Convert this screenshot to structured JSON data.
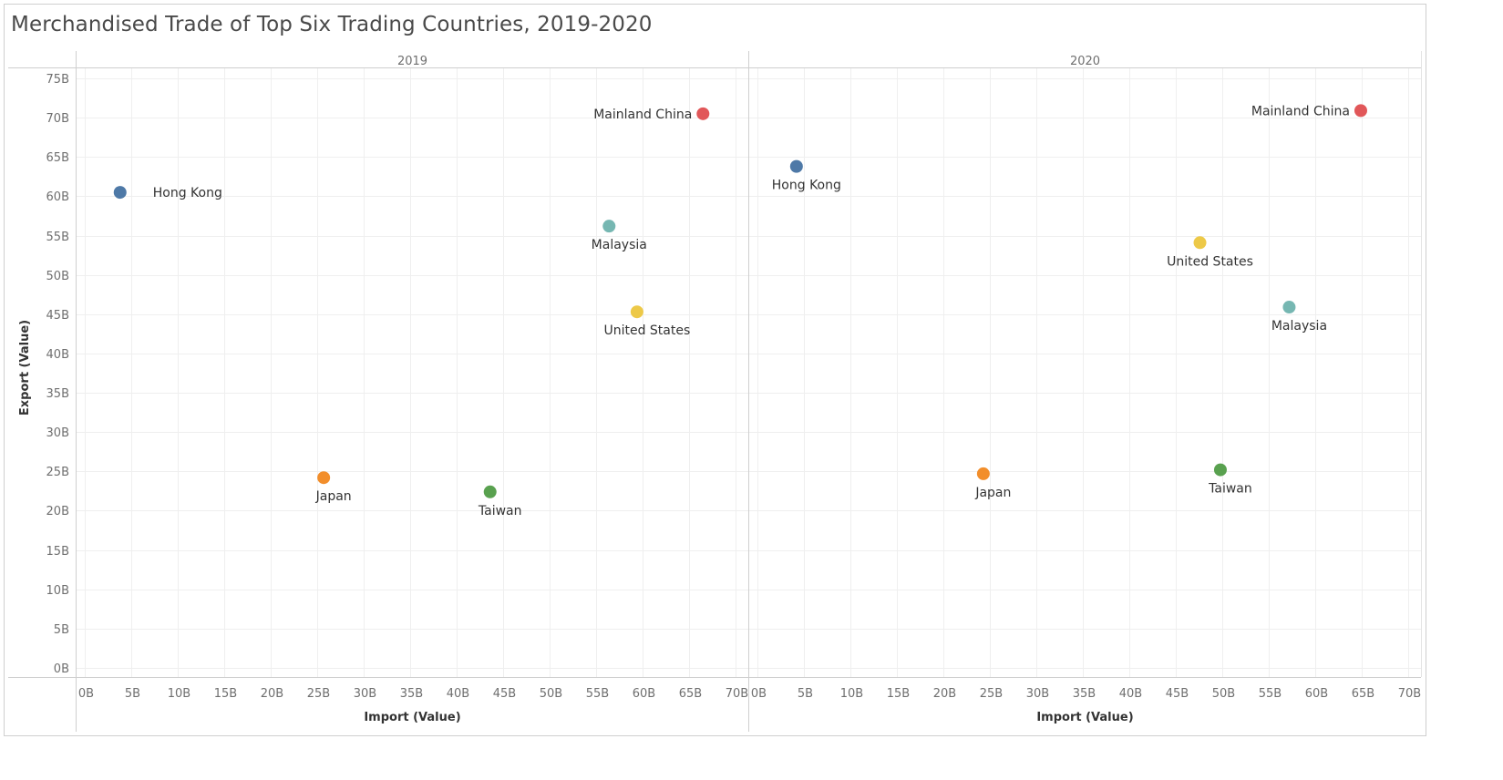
{
  "chart_data": {
    "type": "scatter",
    "title": "Merchandised Trade of Top Six Trading Countries, 2019-2020",
    "xlabel": "Import (Value)",
    "ylabel": "Export (Value)",
    "xlim": [
      0,
      70
    ],
    "ylim": [
      0,
      75
    ],
    "x_ticks": [
      "0B",
      "5B",
      "10B",
      "15B",
      "20B",
      "25B",
      "30B",
      "35B",
      "40B",
      "45B",
      "50B",
      "55B",
      "60B",
      "65B",
      "70B"
    ],
    "y_ticks": [
      "0B",
      "5B",
      "10B",
      "15B",
      "20B",
      "25B",
      "30B",
      "35B",
      "40B",
      "45B",
      "50B",
      "55B",
      "60B",
      "65B",
      "70B",
      "75B"
    ],
    "unit": "B",
    "grid": true,
    "colors": {
      "Hong Kong": "#4e79a7",
      "Mainland China": "#e15759",
      "Malaysia": "#76b7b2",
      "United States": "#edc948",
      "Japan": "#f28e2b",
      "Taiwan": "#59a14f"
    },
    "panels": [
      {
        "name": "2019",
        "points": [
          {
            "label": "Hong Kong",
            "x": 3.8,
            "y": 60.5,
            "label_pos": "right"
          },
          {
            "label": "Mainland China",
            "x": 66.5,
            "y": 70.5,
            "label_pos": "left"
          },
          {
            "label": "Malaysia",
            "x": 56.4,
            "y": 56.2,
            "label_pos": "below"
          },
          {
            "label": "United States",
            "x": 59.4,
            "y": 45.3,
            "label_pos": "below"
          },
          {
            "label": "Japan",
            "x": 25.7,
            "y": 24.2,
            "label_pos": "below"
          },
          {
            "label": "Taiwan",
            "x": 43.6,
            "y": 22.4,
            "label_pos": "below"
          }
        ]
      },
      {
        "name": "2020",
        "points": [
          {
            "label": "Hong Kong",
            "x": 4.2,
            "y": 63.8,
            "label_pos": "below"
          },
          {
            "label": "Mainland China",
            "x": 64.9,
            "y": 70.9,
            "label_pos": "left"
          },
          {
            "label": "Malaysia",
            "x": 57.2,
            "y": 45.9,
            "label_pos": "below"
          },
          {
            "label": "United States",
            "x": 47.6,
            "y": 54.1,
            "label_pos": "below"
          },
          {
            "label": "Japan",
            "x": 24.3,
            "y": 24.7,
            "label_pos": "below"
          },
          {
            "label": "Taiwan",
            "x": 49.8,
            "y": 25.2,
            "label_pos": "below"
          }
        ]
      }
    ]
  }
}
